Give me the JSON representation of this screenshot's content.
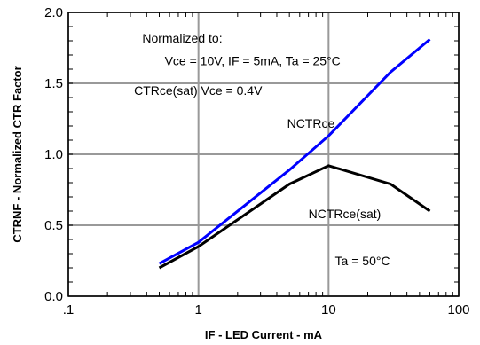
{
  "chart_data": {
    "type": "line",
    "title": "",
    "xlabel": "IF - LED Current -  mA",
    "ylabel": "CTRNF - Normalized CTR Factor",
    "x_scale": "log",
    "xlim": [
      0.1,
      100
    ],
    "ylim": [
      0.0,
      2.0
    ],
    "x_ticks": [
      0.1,
      1,
      10,
      100
    ],
    "x_tick_labels": [
      ".1",
      "1",
      "10",
      "100"
    ],
    "y_ticks": [
      0.0,
      0.5,
      1.0,
      1.5,
      2.0
    ],
    "y_tick_labels": [
      "0.0",
      "0.5",
      "1.0",
      "1.5",
      "2.0"
    ],
    "grid": true,
    "legend": "none",
    "series": [
      {
        "name": "NCTRce",
        "color": "#0000ff",
        "points": [
          [
            0.5,
            0.23
          ],
          [
            1,
            0.38
          ],
          [
            5,
            0.89
          ],
          [
            10,
            1.13
          ],
          [
            30,
            1.58
          ],
          [
            60,
            1.81
          ]
        ]
      },
      {
        "name": "NCTRce(sat)",
        "color": "#000000",
        "points": [
          [
            0.5,
            0.2
          ],
          [
            1,
            0.35
          ],
          [
            5,
            0.79
          ],
          [
            10,
            0.92
          ],
          [
            30,
            0.79
          ],
          [
            60,
            0.6
          ]
        ]
      }
    ],
    "annotations": [
      {
        "id": "normalized-to",
        "text": "Normalized to:",
        "x": 0.37,
        "y": 1.82
      },
      {
        "id": "conditions",
        "text": "Vce = 10V, IF = 5mA, Ta = 25°C",
        "x": 0.55,
        "y": 1.66
      },
      {
        "id": "sat-condition",
        "text": "CTRce(sat) Vce = 0.4V",
        "x": 0.32,
        "y": 1.45
      },
      {
        "id": "nctrce-label",
        "text": "NCTRce",
        "x": 4.8,
        "y": 1.22
      },
      {
        "id": "nctrce-sat-label",
        "text": "NCTRce(sat)",
        "x": 7.0,
        "y": 0.58
      },
      {
        "id": "ta-label",
        "text": "Ta = 50°C",
        "x": 11.2,
        "y": 0.25
      }
    ]
  }
}
